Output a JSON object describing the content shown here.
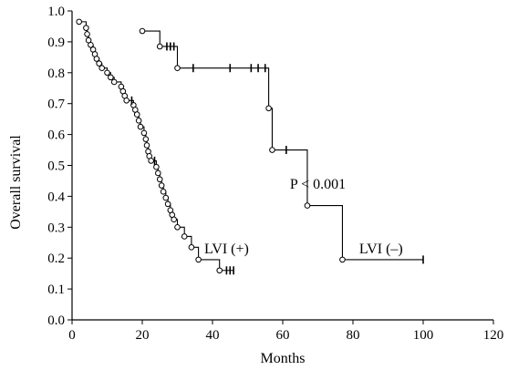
{
  "chart_data": {
    "type": "line",
    "subtype": "kaplan-meier",
    "xlabel": "Months",
    "ylabel": "Overall survival",
    "xlim": [
      0,
      120
    ],
    "ylim": [
      0,
      1.0
    ],
    "x_ticks": [
      0,
      20,
      40,
      60,
      80,
      100,
      120
    ],
    "x_tick_labels": [
      "0",
      "20",
      "40",
      "60",
      "80",
      "100",
      "120"
    ],
    "y_ticks": [
      0,
      0.1,
      0.2,
      0.3,
      0.4,
      0.5,
      0.6,
      0.7,
      0.8,
      0.9,
      1.0
    ],
    "y_tick_labels": [
      "0.0",
      "0.1",
      "0.2",
      "0.3",
      "0.4",
      "0.5",
      "0.6",
      "0.7",
      "0.8",
      "0.9",
      "1.0"
    ],
    "grid": false,
    "color": "#000000",
    "annotations": [
      {
        "text": "P < 0.001",
        "x": 70,
        "y": 0.44
      },
      {
        "text": "LVI (+)",
        "x": 44,
        "y": 0.23
      },
      {
        "text": "LVI (–)",
        "x": 88,
        "y": 0.23
      }
    ],
    "series": [
      {
        "name": "LVI (+)",
        "events": [
          [
            2,
            0.965
          ],
          [
            4,
            0.945
          ],
          [
            4.3,
            0.925
          ],
          [
            4.7,
            0.905
          ],
          [
            5.3,
            0.89
          ],
          [
            6,
            0.875
          ],
          [
            6.5,
            0.86
          ],
          [
            7,
            0.845
          ],
          [
            7.7,
            0.83
          ],
          [
            8.5,
            0.815
          ],
          [
            10,
            0.8
          ],
          [
            11,
            0.785
          ],
          [
            12,
            0.77
          ],
          [
            14,
            0.755
          ],
          [
            14.5,
            0.74
          ],
          [
            15,
            0.725
          ],
          [
            15.5,
            0.71
          ],
          [
            17.5,
            0.695
          ],
          [
            18,
            0.68
          ],
          [
            18.5,
            0.665
          ],
          [
            19,
            0.645
          ],
          [
            19.5,
            0.625
          ],
          [
            20.5,
            0.605
          ],
          [
            21,
            0.585
          ],
          [
            21.3,
            0.565
          ],
          [
            21.7,
            0.545
          ],
          [
            22,
            0.53
          ],
          [
            22.5,
            0.515
          ],
          [
            24,
            0.495
          ],
          [
            24.5,
            0.475
          ],
          [
            25,
            0.455
          ],
          [
            25.5,
            0.435
          ],
          [
            26,
            0.415
          ],
          [
            26.7,
            0.395
          ],
          [
            27.3,
            0.375
          ],
          [
            28,
            0.355
          ],
          [
            28.5,
            0.34
          ],
          [
            29,
            0.325
          ],
          [
            30,
            0.3
          ],
          [
            32,
            0.27
          ],
          [
            34,
            0.235
          ],
          [
            36,
            0.195
          ],
          [
            42,
            0.16
          ]
        ],
        "censored": [
          [
            17,
            0.71
          ],
          [
            23.5,
            0.515
          ],
          [
            44,
            0.16
          ],
          [
            45,
            0.16
          ],
          [
            46,
            0.16
          ]
        ],
        "end_x": 46
      },
      {
        "name": "LVI (–)",
        "start": [
          20,
          0.935
        ],
        "events": [
          [
            25,
            0.885
          ],
          [
            30,
            0.815
          ],
          [
            56,
            0.685
          ],
          [
            57,
            0.55
          ],
          [
            67,
            0.37
          ],
          [
            77,
            0.195
          ]
        ],
        "censored": [
          [
            27,
            0.885
          ],
          [
            28,
            0.885
          ],
          [
            29,
            0.885
          ],
          [
            34.5,
            0.815
          ],
          [
            45,
            0.815
          ],
          [
            51,
            0.815
          ],
          [
            53,
            0.815
          ],
          [
            55,
            0.815
          ],
          [
            61,
            0.55
          ],
          [
            100,
            0.195
          ]
        ],
        "end_x": 100
      }
    ]
  }
}
